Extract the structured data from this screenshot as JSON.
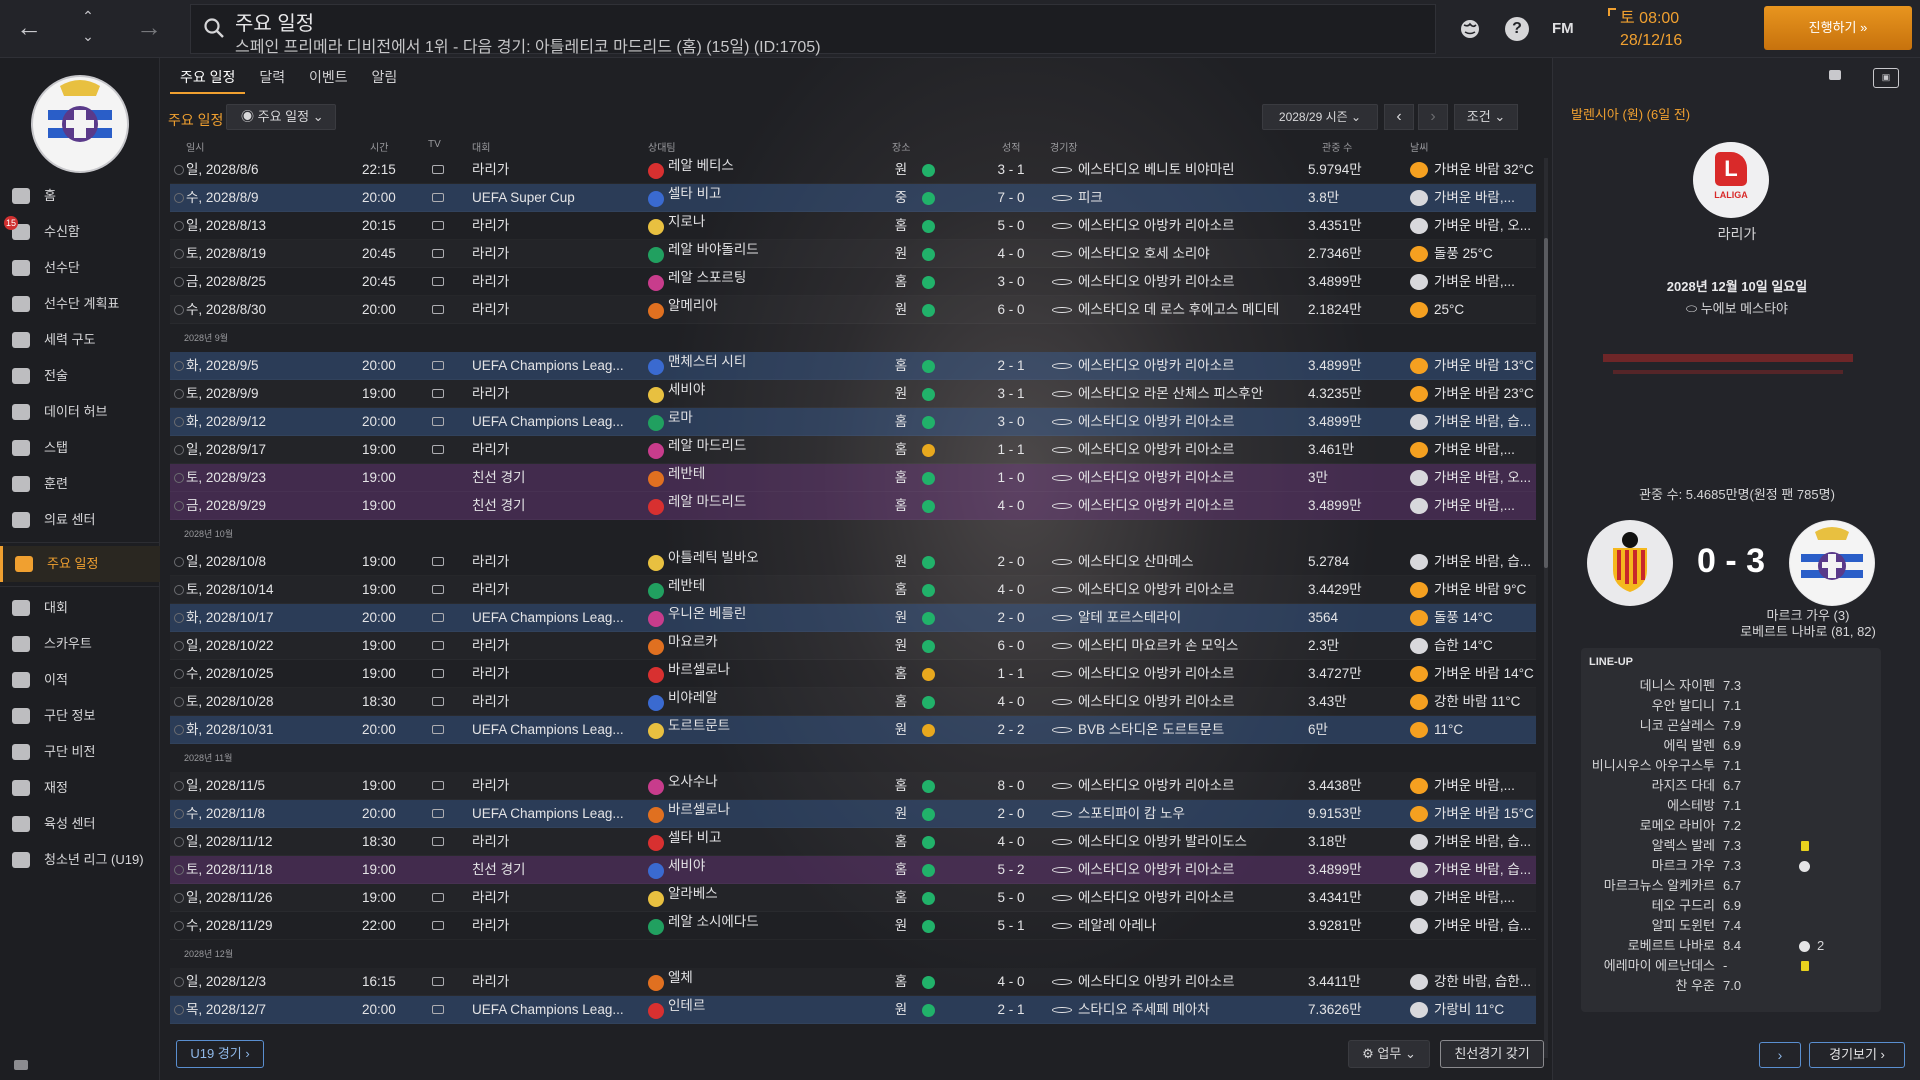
{
  "topbar": {
    "title": "주요 일정",
    "subtitle": "스페인 프리메라 디비전에서 1위 - 다음 경기: 아틀레티코 마드리드 (홈) (15일) (ID:1705)",
    "fm_label": "FM",
    "time": "토 08:00",
    "date": "28/12/16",
    "continue_label": "진행하기 »"
  },
  "sidebar": {
    "items": [
      {
        "label": "홈"
      },
      {
        "label": "수신함",
        "badge": "15"
      },
      {
        "label": "선수단"
      },
      {
        "label": "선수단 계획표"
      },
      {
        "label": "세력 구도"
      },
      {
        "label": "전술"
      },
      {
        "label": "데이터 허브"
      },
      {
        "label": "스탭"
      },
      {
        "label": "훈련"
      },
      {
        "label": "의료 센터"
      },
      {
        "label": "주요 일정",
        "active": true
      },
      {
        "label": "대회"
      },
      {
        "label": "스카우트"
      },
      {
        "label": "이적"
      },
      {
        "label": "구단 정보"
      },
      {
        "label": "구단 비전"
      },
      {
        "label": "재정"
      },
      {
        "label": "육성 센터"
      },
      {
        "label": "청소년 리그 (U19)"
      }
    ]
  },
  "tabs": [
    "주요 일정",
    "달력",
    "이벤트",
    "알림"
  ],
  "toolbar": {
    "label": "주요 일정",
    "view_dropdown": "주요 일정",
    "season": "2028/29 시즌",
    "filter": "조건"
  },
  "columns": {
    "date": "일시",
    "time": "시간",
    "tv": "TV",
    "comp": "대회",
    "opp": "상대팀",
    "venue": "장소",
    "result": "성적",
    "stadium": "경기장",
    "att": "관중 수",
    "weather": "날씨"
  },
  "schedule": [
    {
      "date": "일, 2028/8/6",
      "time": "22:15",
      "comp": "라리가",
      "opp": "레알 베티스",
      "venue": "원",
      "result": "green",
      "score": "3 - 1",
      "stadium": "에스타디오 베니토 비야마린",
      "att": "5.9794만",
      "weather": "가벼운 바람 32°C",
      "wx": "sun",
      "style": ""
    },
    {
      "date": "수, 2028/8/9",
      "time": "20:00",
      "comp": "UEFA Super Cup",
      "opp": "셀타 비고",
      "venue": "중",
      "result": "green",
      "score": "7 - 0",
      "stadium": "피크",
      "att": "3.8만",
      "weather": "가벼운 바람,...",
      "wx": "cloud",
      "style": "ucl"
    },
    {
      "date": "일, 2028/8/13",
      "time": "20:15",
      "comp": "라리가",
      "opp": "지로나",
      "venue": "홈",
      "result": "green",
      "score": "5 - 0",
      "stadium": "에스타디오 아방카 리아소르",
      "att": "3.4351만",
      "weather": "가벼운 바람, 오...",
      "wx": "cloud",
      "style": ""
    },
    {
      "date": "토, 2028/8/19",
      "time": "20:45",
      "comp": "라리가",
      "opp": "레알 바야돌리드",
      "venue": "원",
      "result": "green",
      "score": "4 - 0",
      "stadium": "에스타디오 호세 소리야",
      "att": "2.7346만",
      "weather": "돌풍 25°C",
      "wx": "sun",
      "style": ""
    },
    {
      "date": "금, 2028/8/25",
      "time": "20:45",
      "comp": "라리가",
      "opp": "레알 스포르팅",
      "venue": "홈",
      "result": "green",
      "score": "3 - 0",
      "stadium": "에스타디오 아방카 리아소르",
      "att": "3.4899만",
      "weather": "가벼운 바람,...",
      "wx": "cloud",
      "style": ""
    },
    {
      "date": "수, 2028/8/30",
      "time": "20:00",
      "comp": "라리가",
      "opp": "알메리아",
      "venue": "원",
      "result": "green",
      "score": "6 - 0",
      "stadium": "에스타디오 데 로스 후에고스 메디테라네...",
      "att": "2.1824만",
      "weather": "25°C",
      "wx": "sun",
      "style": ""
    },
    {
      "month": "2028년 9월"
    },
    {
      "date": "화, 2028/9/5",
      "time": "20:00",
      "comp": "UEFA Champions Leag...",
      "opp": "맨체스터 시티",
      "venue": "홈",
      "result": "green",
      "score": "2 - 1",
      "stadium": "에스타디오 아방카 리아소르",
      "att": "3.4899만",
      "weather": "가벼운 바람 13°C",
      "wx": "sun",
      "style": "ucl"
    },
    {
      "date": "토, 2028/9/9",
      "time": "19:00",
      "comp": "라리가",
      "opp": "세비야",
      "venue": "원",
      "result": "green",
      "score": "3 - 1",
      "stadium": "에스타디오 라몬 산체스 피스후안",
      "att": "4.3235만",
      "weather": "가벼운 바람 23°C",
      "wx": "sun",
      "style": ""
    },
    {
      "date": "화, 2028/9/12",
      "time": "20:00",
      "comp": "UEFA Champions Leag...",
      "opp": "로마",
      "venue": "홈",
      "result": "green",
      "score": "3 - 0",
      "stadium": "에스타디오 아방카 리아소르",
      "att": "3.4899만",
      "weather": "가벼운 바람, 습...",
      "wx": "cloud",
      "style": "ucl"
    },
    {
      "date": "일, 2028/9/17",
      "time": "19:00",
      "comp": "라리가",
      "opp": "레알 마드리드",
      "venue": "홈",
      "result": "yellow",
      "score": "1 - 1",
      "stadium": "에스타디오 아방카 리아소르",
      "att": "3.461만",
      "weather": "가벼운 바람,...",
      "wx": "sun",
      "style": ""
    },
    {
      "date": "토, 2028/9/23",
      "time": "19:00",
      "comp": "친선 경기",
      "opp": "레반테",
      "venue": "홈",
      "result": "green",
      "score": "1 - 0",
      "stadium": "에스타디오 아방카 리아소르",
      "att": "3만",
      "weather": "가벼운 바람, 오...",
      "wx": "cloud",
      "style": "friendly"
    },
    {
      "date": "금, 2028/9/29",
      "time": "19:00",
      "comp": "친선 경기",
      "opp": "레알 마드리드",
      "venue": "홈",
      "result": "green",
      "score": "4 - 0",
      "stadium": "에스타디오 아방카 리아소르",
      "att": "3.4899만",
      "weather": "가벼운 바람,...",
      "wx": "cloud",
      "style": "friendly"
    },
    {
      "month": "2028년 10월"
    },
    {
      "date": "일, 2028/10/8",
      "time": "19:00",
      "comp": "라리가",
      "opp": "아틀레틱 빌바오",
      "venue": "원",
      "result": "green",
      "score": "2 - 0",
      "stadium": "에스타디오 산마메스",
      "att": "5.2784",
      "weather": "가벼운 바람, 습...",
      "wx": "cloud",
      "style": ""
    },
    {
      "date": "토, 2028/10/14",
      "time": "19:00",
      "comp": "라리가",
      "opp": "레반테",
      "venue": "홈",
      "result": "green",
      "score": "4 - 0",
      "stadium": "에스타디오 아방카 리아소르",
      "att": "3.4429만",
      "weather": "가벼운 바람 9°C",
      "wx": "sun",
      "style": ""
    },
    {
      "date": "화, 2028/10/17",
      "time": "20:00",
      "comp": "UEFA Champions Leag...",
      "opp": "우니온 베를린",
      "venue": "원",
      "result": "green",
      "score": "2 - 0",
      "stadium": "알테 포르스테라이",
      "att": "3564",
      "weather": "돌풍 14°C",
      "wx": "sun",
      "style": "ucl"
    },
    {
      "date": "일, 2028/10/22",
      "time": "19:00",
      "comp": "라리가",
      "opp": "마요르카",
      "venue": "원",
      "result": "green",
      "score": "6 - 0",
      "stadium": "에스타디 마요르카 손 모익스",
      "att": "2.3만",
      "weather": "습한 14°C",
      "wx": "cloud",
      "style": ""
    },
    {
      "date": "수, 2028/10/25",
      "time": "19:00",
      "comp": "라리가",
      "opp": "바르셀로나",
      "venue": "홈",
      "result": "yellow",
      "score": "1 - 1",
      "stadium": "에스타디오 아방카 리아소르",
      "att": "3.4727만",
      "weather": "가벼운 바람 14°C",
      "wx": "sun",
      "style": ""
    },
    {
      "date": "토, 2028/10/28",
      "time": "18:30",
      "comp": "라리가",
      "opp": "비야레알",
      "venue": "홈",
      "result": "green",
      "score": "4 - 0",
      "stadium": "에스타디오 아방카 리아소르",
      "att": "3.43만",
      "weather": "강한 바람 11°C",
      "wx": "sun",
      "style": ""
    },
    {
      "date": "화, 2028/10/31",
      "time": "20:00",
      "comp": "UEFA Champions Leag...",
      "opp": "도르트문트",
      "venue": "원",
      "result": "yellow",
      "score": "2 - 2",
      "stadium": "BVB 스타디온 도르트문트",
      "att": "6만",
      "weather": "11°C",
      "wx": "sun",
      "style": "ucl"
    },
    {
      "month": "2028년 11월"
    },
    {
      "date": "일, 2028/11/5",
      "time": "19:00",
      "comp": "라리가",
      "opp": "오사수나",
      "venue": "홈",
      "result": "green",
      "score": "8 - 0",
      "stadium": "에스타디오 아방카 리아소르",
      "att": "3.4438만",
      "weather": "가벼운 바람,...",
      "wx": "sun",
      "style": ""
    },
    {
      "date": "수, 2028/11/8",
      "time": "20:00",
      "comp": "UEFA Champions Leag...",
      "opp": "바르셀로나",
      "venue": "원",
      "result": "green",
      "score": "2 - 0",
      "stadium": "스포티파이 캄 노우",
      "att": "9.9153만",
      "weather": "가벼운 바람 15°C",
      "wx": "sun",
      "style": "ucl"
    },
    {
      "date": "일, 2028/11/12",
      "time": "18:30",
      "comp": "라리가",
      "opp": "셀타 비고",
      "venue": "홈",
      "result": "green",
      "score": "4 - 0",
      "stadium": "에스타디오 아방카 발라이도스",
      "att": "3.18만",
      "weather": "가벼운 바람, 습...",
      "wx": "cloud",
      "style": ""
    },
    {
      "date": "토, 2028/11/18",
      "time": "19:00",
      "comp": "친선 경기",
      "opp": "세비야",
      "venue": "홈",
      "result": "green",
      "score": "5 - 2",
      "stadium": "에스타디오 아방카 리아소르",
      "att": "3.4899만",
      "weather": "가벼운 바람, 습...",
      "wx": "cloud",
      "style": "friendly"
    },
    {
      "date": "일, 2028/11/26",
      "time": "19:00",
      "comp": "라리가",
      "opp": "알라베스",
      "venue": "홈",
      "result": "green",
      "score": "5 - 0",
      "stadium": "에스타디오 아방카 리아소르",
      "att": "3.4341만",
      "weather": "가벼운 바람,...",
      "wx": "cloud",
      "style": ""
    },
    {
      "date": "수, 2028/11/29",
      "time": "22:00",
      "comp": "라리가",
      "opp": "레알 소시에다드",
      "venue": "원",
      "result": "green",
      "score": "5 - 1",
      "stadium": "레알레 아레나",
      "att": "3.9281만",
      "weather": "가벼운 바람, 습...",
      "wx": "cloud",
      "style": ""
    },
    {
      "month": "2028년 12월"
    },
    {
      "date": "일, 2028/12/3",
      "time": "16:15",
      "comp": "라리가",
      "opp": "엘체",
      "venue": "홈",
      "result": "green",
      "score": "4 - 0",
      "stadium": "에스타디오 아방카 리아소르",
      "att": "3.4411만",
      "weather": "강한 바람, 습한...",
      "wx": "cloud",
      "style": ""
    },
    {
      "date": "목, 2028/12/7",
      "time": "20:00",
      "comp": "UEFA Champions Leag...",
      "opp": "인테르",
      "venue": "원",
      "result": "green",
      "score": "2 - 1",
      "stadium": "스타디오 주세페 메아차",
      "att": "7.3626만",
      "weather": "가랑비 11°C",
      "wx": "cloud",
      "style": "ucl"
    }
  ],
  "buttons": {
    "u19": "U19 경기 ›",
    "job": "업무",
    "friendly": "친선경기 갖기",
    "view_match": "경기보기 ›"
  },
  "right_panel": {
    "title": "발렌시아 (원) (6일 전)",
    "competition": "라리가",
    "date": "2028년 12월 10일 일요일",
    "stadium": "누에보 메스타야",
    "attendance": "관중 수: 5.4685만명(원정 팬 785명)",
    "score": "0 - 3",
    "scorers": [
      "마르크 가우 (3)",
      "로베르트 나바로 (81, 82)"
    ],
    "lineup_title": "LINE-UP",
    "lineup": [
      {
        "name": "데니스 자이펜",
        "rating": "7.3"
      },
      {
        "name": "우안 발디니",
        "rating": "7.1"
      },
      {
        "name": "니코 곤살레스",
        "rating": "7.9"
      },
      {
        "name": "에릭 발렌",
        "rating": "6.9"
      },
      {
        "name": "비니시우스 아우구스투",
        "rating": "7.1"
      },
      {
        "name": "라지즈 다데",
        "rating": "6.7"
      },
      {
        "name": "에스테방",
        "rating": "7.1"
      },
      {
        "name": "로메오 라비아",
        "rating": "7.2"
      },
      {
        "name": "알렉스 발레",
        "rating": "7.3",
        "card": true
      },
      {
        "name": "마르크 가우",
        "rating": "7.3",
        "goal": ""
      },
      {
        "name": "마르크뉴스 알케카르",
        "rating": "6.7"
      },
      {
        "name": "테오 구드리",
        "rating": "6.9"
      },
      {
        "name": "알피 도윈턴",
        "rating": "7.4"
      },
      {
        "name": "로베르트 나바로",
        "rating": "8.4",
        "goal": "2"
      },
      {
        "name": "에레마이 에르난데스",
        "rating": "-",
        "card": true
      },
      {
        "name": "찬 우준",
        "rating": "7.0"
      }
    ]
  },
  "colors": {
    "accent": "#f0a030",
    "win": "#21b26a",
    "draw": "#e8a81e",
    "ucl_row": "#3c64a0",
    "friendly_row": "#783c8c"
  }
}
